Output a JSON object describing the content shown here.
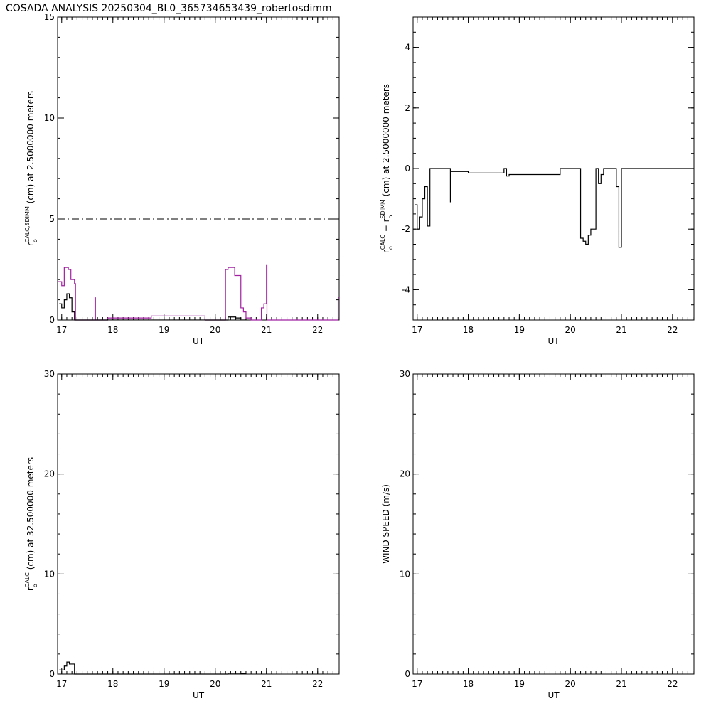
{
  "title": "COSADA ANALYSIS 20250304_BL0_365734653439_robertosdimm",
  "chart_data": [
    {
      "type": "line",
      "xlabel": "UT",
      "ylabel_parts": [
        {
          "text": "r",
          "style": "normal"
        },
        {
          "text": "o",
          "style": "sub"
        },
        {
          "text": "CALC,SDIMM",
          "style": "sup"
        },
        {
          "text": " (cm)  at  2.5000000 meters",
          "style": "normal"
        }
      ],
      "xlim": [
        16.92,
        22.42
      ],
      "ylim": [
        0,
        15
      ],
      "xticks": [
        17,
        18,
        19,
        20,
        21,
        22
      ],
      "yticks": [
        0,
        5,
        10,
        15
      ],
      "xminor": 10,
      "yminor": 5,
      "reference_lines": [
        {
          "value": 5,
          "dash": "dash-dot"
        }
      ],
      "series": [
        {
          "color": "#a020a0",
          "step": true,
          "x": [
            16.92,
            17.0,
            17.05,
            17.13,
            17.18,
            17.25,
            17.27,
            17.65,
            17.66,
            17.9,
            18.75,
            19.8,
            20.2,
            20.25,
            20.38,
            20.5,
            20.55,
            20.6,
            20.7,
            20.9,
            20.95,
            21.0,
            21.01,
            22.4,
            22.42
          ],
          "values": [
            1.9,
            1.7,
            2.6,
            2.5,
            2.0,
            1.8,
            0,
            1.1,
            0,
            0.1,
            0.2,
            0,
            2.5,
            2.6,
            2.2,
            0.6,
            0.4,
            0.1,
            0,
            0.6,
            0.8,
            2.7,
            0,
            1.1,
            1.1
          ]
        },
        {
          "color": "#000000",
          "step": true,
          "x": [
            16.95,
            17.0,
            17.05,
            17.1,
            17.15,
            17.2,
            17.25,
            17.9,
            19.8,
            20.25,
            20.4,
            20.5,
            20.6
          ],
          "values": [
            0.8,
            0.6,
            1.0,
            1.3,
            1.1,
            0.4,
            0,
            0.05,
            0,
            0.15,
            0.1,
            0.05,
            0
          ]
        }
      ]
    },
    {
      "type": "line",
      "xlabel": "UT",
      "ylabel_parts": [
        {
          "text": "r",
          "style": "normal"
        },
        {
          "text": "o",
          "style": "sub"
        },
        {
          "text": "CALC",
          "style": "sup"
        },
        {
          "text": "  −  r",
          "style": "normal"
        },
        {
          "text": "o",
          "style": "sub"
        },
        {
          "text": "SDIMM",
          "style": "sup"
        },
        {
          "text": " (cm)  at  2.5000000 meters",
          "style": "normal"
        }
      ],
      "xlim": [
        16.92,
        22.42
      ],
      "ylim": [
        -5,
        5
      ],
      "xticks": [
        17,
        18,
        19,
        20,
        21,
        22
      ],
      "yticks": [
        -4,
        -2,
        0,
        2,
        4
      ],
      "xminor": 10,
      "yminor": 4,
      "reference_lines": [],
      "series": [
        {
          "color": "#000000",
          "step": true,
          "x": [
            16.95,
            17.0,
            17.05,
            17.1,
            17.15,
            17.2,
            17.25,
            17.65,
            17.66,
            18.0,
            18.7,
            18.75,
            18.8,
            19.8,
            20.2,
            20.25,
            20.3,
            20.35,
            20.4,
            20.5,
            20.55,
            20.6,
            20.65,
            20.9,
            20.95,
            21.0,
            22.42
          ],
          "values": [
            -1.2,
            -2.0,
            -1.6,
            -1.0,
            -0.6,
            -1.9,
            0,
            -1.1,
            -0.1,
            -0.15,
            0,
            -0.25,
            -0.2,
            0,
            -2.3,
            -2.4,
            -2.5,
            -2.2,
            -2.0,
            0,
            -0.5,
            -0.2,
            0,
            -0.6,
            -2.6,
            0,
            0
          ]
        }
      ]
    },
    {
      "type": "line",
      "xlabel": "UT",
      "ylabel_parts": [
        {
          "text": "r",
          "style": "normal"
        },
        {
          "text": "o",
          "style": "sub"
        },
        {
          "text": "CALC",
          "style": "sup"
        },
        {
          "text": " (cm) at 32.500000 meters",
          "style": "normal"
        }
      ],
      "xlim": [
        16.92,
        22.42
      ],
      "ylim": [
        0,
        30
      ],
      "xticks": [
        17,
        18,
        19,
        20,
        21,
        22
      ],
      "yticks": [
        0,
        10,
        20,
        30
      ],
      "xminor": 10,
      "yminor": 5,
      "reference_lines": [
        {
          "value": 4.8,
          "dash": "dash-dot"
        }
      ],
      "series": [
        {
          "color": "#000000",
          "step": true,
          "x": [
            16.95,
            17.05,
            17.1,
            17.15,
            17.25,
            20.25,
            20.5,
            20.6
          ],
          "values": [
            0.4,
            0.8,
            1.2,
            1.0,
            0,
            0.1,
            0.05,
            0
          ]
        }
      ]
    },
    {
      "type": "line",
      "xlabel": "UT",
      "ylabel_parts": [
        {
          "text": "WIND SPEED (m/s)",
          "style": "normal"
        }
      ],
      "xlim": [
        16.92,
        22.42
      ],
      "ylim": [
        0,
        30
      ],
      "xticks": [
        17,
        18,
        19,
        20,
        21,
        22
      ],
      "yticks": [
        0,
        10,
        20,
        30
      ],
      "xminor": 10,
      "yminor": 5,
      "reference_lines": [],
      "series": []
    }
  ]
}
